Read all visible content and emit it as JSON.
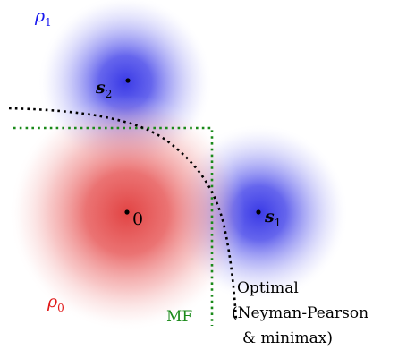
{
  "labels": {
    "rho1": "ρ",
    "rho1_sub": "1",
    "rho0": "ρ",
    "rho0_sub": "0",
    "s2": "s",
    "s2_sub": "2",
    "s1": "s",
    "s1_sub": "1",
    "origin": "0",
    "mf": "MF",
    "optimal_line1": "Optimal",
    "optimal_line2": "(Neyman-Pearson",
    "optimal_line3": "& minimax)"
  },
  "colors": {
    "hypothesis1_blob": "#3a3ae6",
    "hypothesis0_blob": "#e03a3a",
    "rho1_text": "#1a1aee",
    "rho0_text": "#e01818",
    "mf_boundary": "#1a8a1a",
    "optimal_boundary": "#000000",
    "point_and_text": "#000000"
  }
}
